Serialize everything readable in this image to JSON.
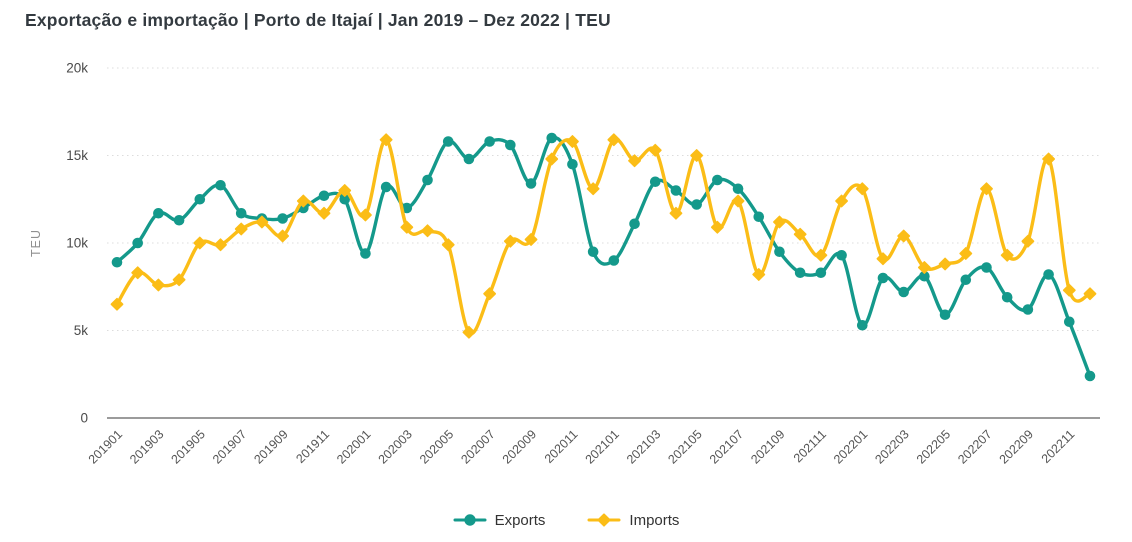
{
  "title": "Exportação e importação | Porto de Itajaí | Jan 2019 – Dez 2022 | TEU",
  "colors": {
    "exports": "#14998B",
    "imports": "#FBBD17",
    "axis_text": "#4a4a4a",
    "x_tick_text": "#555555",
    "y_axis_title": "#8f8f8f",
    "gridline": "#dcdcdc",
    "baseline": "#7a7a7a",
    "title_text": "#333a40"
  },
  "chart_data": {
    "type": "line",
    "title": "Exportação e importação | Porto de Itajaí | Jan 2019 – Dez 2022 | TEU",
    "xlabel": "",
    "ylabel": "TEU",
    "ylim": [
      0,
      20000
    ],
    "grid": true,
    "legend_position": "bottom",
    "x_tick_interval": 2,
    "yticks": [
      {
        "value": 0,
        "label": "0"
      },
      {
        "value": 5000,
        "label": "5k"
      },
      {
        "value": 10000,
        "label": "10k"
      },
      {
        "value": 15000,
        "label": "15k"
      },
      {
        "value": 20000,
        "label": "20k"
      }
    ],
    "x": [
      "201901",
      "201902",
      "201903",
      "201904",
      "201905",
      "201906",
      "201907",
      "201908",
      "201909",
      "201910",
      "201911",
      "201912",
      "202001",
      "202002",
      "202003",
      "202004",
      "202005",
      "202006",
      "202007",
      "202008",
      "202009",
      "202010",
      "202011",
      "202012",
      "202101",
      "202102",
      "202103",
      "202104",
      "202105",
      "202106",
      "202107",
      "202108",
      "202109",
      "202110",
      "202111",
      "202112",
      "202201",
      "202202",
      "202203",
      "202204",
      "202205",
      "202206",
      "202207",
      "202208",
      "202209",
      "202210",
      "202211",
      "202212"
    ],
    "series": [
      {
        "name": "Exports",
        "color": "#14998B",
        "marker": "circle",
        "values": [
          8900,
          10000,
          11700,
          11300,
          12500,
          13300,
          11700,
          11400,
          11400,
          12000,
          12700,
          12500,
          9400,
          13200,
          12000,
          13600,
          15800,
          14800,
          15800,
          15600,
          13400,
          16000,
          14500,
          9500,
          9000,
          11100,
          13500,
          13000,
          12200,
          13600,
          13100,
          11500,
          9500,
          8300,
          8300,
          9300,
          5300,
          8000,
          7200,
          8100,
          5900,
          7900,
          8600,
          6900,
          6200,
          8200,
          5500,
          2400
        ]
      },
      {
        "name": "Imports",
        "color": "#FBBD17",
        "marker": "diamond",
        "values": [
          6500,
          8300,
          7600,
          7900,
          10000,
          9900,
          10800,
          11200,
          10400,
          12400,
          11700,
          13000,
          11600,
          15900,
          10900,
          10700,
          9900,
          4900,
          7100,
          10100,
          10200,
          14800,
          15800,
          13100,
          15900,
          14700,
          15300,
          11700,
          15000,
          10900,
          12400,
          8200,
          11200,
          10500,
          9300,
          12400,
          13100,
          9100,
          10400,
          8600,
          8800,
          9400,
          13100,
          9300,
          10100,
          14800,
          7300,
          7100
        ]
      }
    ]
  },
  "legend": {
    "items": [
      {
        "label": "Exports"
      },
      {
        "label": "Imports"
      }
    ]
  }
}
